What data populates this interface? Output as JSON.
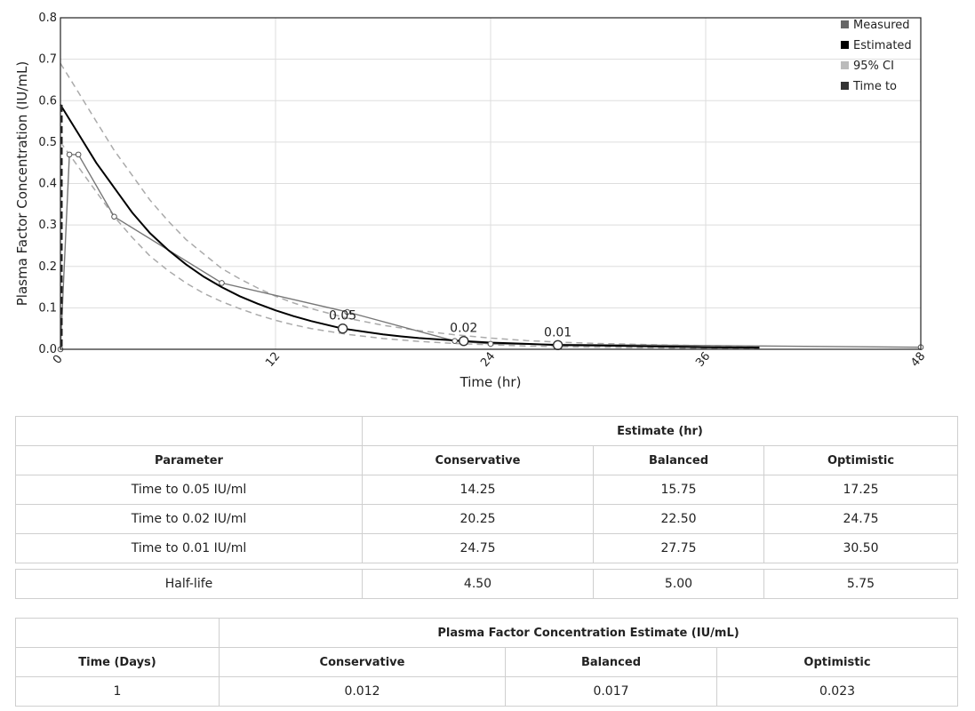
{
  "chart_data": {
    "type": "line",
    "xlabel": "Time (hr)",
    "ylabel": "Plasma Factor Concentration (IU/mL)",
    "xlim": [
      0,
      48
    ],
    "ylim": [
      0,
      0.8
    ],
    "x_ticks": [
      "0",
      "12",
      "24",
      "36",
      "48"
    ],
    "y_ticks": [
      "0.0",
      "0.1",
      "0.2",
      "0.3",
      "0.4",
      "0.5",
      "0.6",
      "0.7",
      "0.8"
    ],
    "grid": true,
    "legend_position": "top-right",
    "legend": [
      {
        "label": "Measured",
        "color": "#666666"
      },
      {
        "label": "Estimated",
        "color": "#000000"
      },
      {
        "label": "95% CI",
        "color": "#bbbbbb"
      },
      {
        "label": "Time to",
        "color": "#333333"
      }
    ],
    "series": [
      {
        "name": "Measured",
        "color": "#777777",
        "points": [
          [
            0,
            0
          ],
          [
            0.5,
            0.47
          ],
          [
            1,
            0.47
          ],
          [
            3,
            0.32
          ],
          [
            9,
            0.16
          ],
          [
            16,
            0.09
          ],
          [
            22,
            0.02
          ],
          [
            24,
            0.013
          ],
          [
            48,
            0.005
          ]
        ]
      },
      {
        "name": "Estimated",
        "color": "#000000",
        "points": [
          [
            0,
            0.59
          ],
          [
            1,
            0.52
          ],
          [
            2,
            0.45
          ],
          [
            3,
            0.39
          ],
          [
            4,
            0.33
          ],
          [
            5,
            0.28
          ],
          [
            6,
            0.24
          ],
          [
            7,
            0.205
          ],
          [
            8,
            0.175
          ],
          [
            9,
            0.15
          ],
          [
            10,
            0.128
          ],
          [
            11,
            0.11
          ],
          [
            12,
            0.094
          ],
          [
            13,
            0.08
          ],
          [
            14,
            0.068
          ],
          [
            15.75,
            0.05
          ],
          [
            17,
            0.042
          ],
          [
            18,
            0.036
          ],
          [
            19,
            0.031
          ],
          [
            20,
            0.027
          ],
          [
            21,
            0.024
          ],
          [
            22.5,
            0.02
          ],
          [
            24,
            0.016
          ],
          [
            26,
            0.013
          ],
          [
            27.75,
            0.01
          ],
          [
            30,
            0.009
          ],
          [
            33,
            0.007
          ],
          [
            36,
            0.005
          ],
          [
            39,
            0.004
          ]
        ]
      },
      {
        "name": "95% CI upper",
        "color": "#aaaaaa",
        "points": [
          [
            0,
            0.69
          ],
          [
            1,
            0.62
          ],
          [
            2,
            0.55
          ],
          [
            3,
            0.48
          ],
          [
            4,
            0.42
          ],
          [
            5,
            0.36
          ],
          [
            6,
            0.31
          ],
          [
            7,
            0.265
          ],
          [
            8,
            0.23
          ],
          [
            9,
            0.195
          ],
          [
            10,
            0.17
          ],
          [
            11,
            0.148
          ],
          [
            12,
            0.128
          ],
          [
            13,
            0.112
          ],
          [
            14,
            0.098
          ],
          [
            16,
            0.075
          ],
          [
            18,
            0.058
          ],
          [
            20,
            0.045
          ],
          [
            22,
            0.035
          ],
          [
            24,
            0.027
          ],
          [
            26,
            0.021
          ],
          [
            28,
            0.017
          ],
          [
            30,
            0.014
          ],
          [
            34,
            0.01
          ],
          [
            39,
            0.007
          ]
        ]
      },
      {
        "name": "95% CI lower",
        "color": "#aaaaaa",
        "points": [
          [
            0,
            0.5
          ],
          [
            1,
            0.44
          ],
          [
            2,
            0.38
          ],
          [
            3,
            0.32
          ],
          [
            4,
            0.27
          ],
          [
            5,
            0.225
          ],
          [
            6,
            0.19
          ],
          [
            7,
            0.16
          ],
          [
            8,
            0.135
          ],
          [
            9,
            0.115
          ],
          [
            10,
            0.098
          ],
          [
            11,
            0.083
          ],
          [
            12,
            0.07
          ],
          [
            13,
            0.059
          ],
          [
            14,
            0.05
          ],
          [
            16,
            0.036
          ],
          [
            18,
            0.026
          ],
          [
            20,
            0.019
          ],
          [
            22,
            0.014
          ],
          [
            24,
            0.011
          ],
          [
            26,
            0.008
          ],
          [
            28,
            0.006
          ],
          [
            32,
            0.004
          ],
          [
            36,
            0.002
          ],
          [
            39,
            0.001
          ]
        ]
      }
    ],
    "annotations": [
      {
        "x": 15.75,
        "y": 0.05,
        "label": "0.05"
      },
      {
        "x": 22.5,
        "y": 0.02,
        "label": "0.02"
      },
      {
        "x": 27.75,
        "y": 0.01,
        "label": "0.01"
      }
    ]
  },
  "table1": {
    "header_group": "Estimate (hr)",
    "columns": [
      "Parameter",
      "Conservative",
      "Balanced",
      "Optimistic"
    ],
    "rows": [
      [
        "Time to 0.05 IU/ml",
        "14.25",
        "15.75",
        "17.25"
      ],
      [
        "Time to 0.02 IU/ml",
        "20.25",
        "22.50",
        "24.75"
      ],
      [
        "Time to 0.01 IU/ml",
        "24.75",
        "27.75",
        "30.50"
      ]
    ],
    "half_life": [
      "Half-life",
      "4.50",
      "5.00",
      "5.75"
    ]
  },
  "table2": {
    "header_group": "Plasma Factor Concentration Estimate (IU/mL)",
    "columns": [
      "Time (Days)",
      "Conservative",
      "Balanced",
      "Optimistic"
    ],
    "rows": [
      [
        "1",
        "0.012",
        "0.017",
        "0.023"
      ]
    ]
  }
}
